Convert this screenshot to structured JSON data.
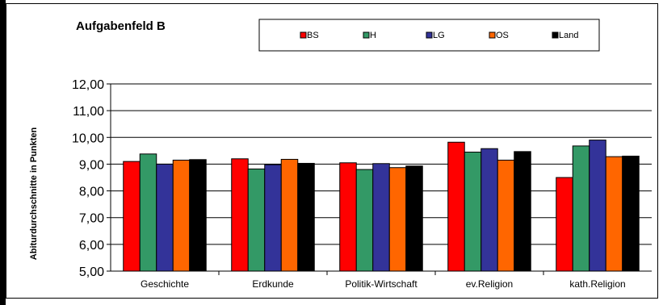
{
  "chart_data": {
    "type": "bar",
    "title": "Aufgabenfeld B",
    "ylabel": "Abiturdurchschnitte in Punkten",
    "xlabel": "",
    "categories": [
      "Geschichte",
      "Erdkunde",
      "Politik-Wirtschaft",
      "ev.Religion",
      "kath.Religion"
    ],
    "ylim": [
      5,
      12
    ],
    "ytick_step": 1,
    "yticks": [
      "5,00",
      "6,00",
      "7,00",
      "8,00",
      "9,00",
      "10,00",
      "11,00",
      "12,00"
    ],
    "grid": true,
    "legend_position": "top",
    "series": [
      {
        "name": "BS",
        "color": "#ff0000",
        "values": [
          9.1,
          9.2,
          9.05,
          9.82,
          8.5
        ]
      },
      {
        "name": "H",
        "color": "#339966",
        "values": [
          9.38,
          8.82,
          8.8,
          9.45,
          9.68
        ]
      },
      {
        "name": "LG",
        "color": "#333399",
        "values": [
          9.0,
          8.98,
          9.02,
          9.58,
          9.9
        ]
      },
      {
        "name": "OS",
        "color": "#ff6600",
        "values": [
          9.15,
          9.18,
          8.87,
          9.15,
          9.28
        ]
      },
      {
        "name": "Land",
        "color": "#000000",
        "values": [
          9.17,
          9.03,
          8.93,
          9.47,
          9.3
        ]
      }
    ]
  }
}
